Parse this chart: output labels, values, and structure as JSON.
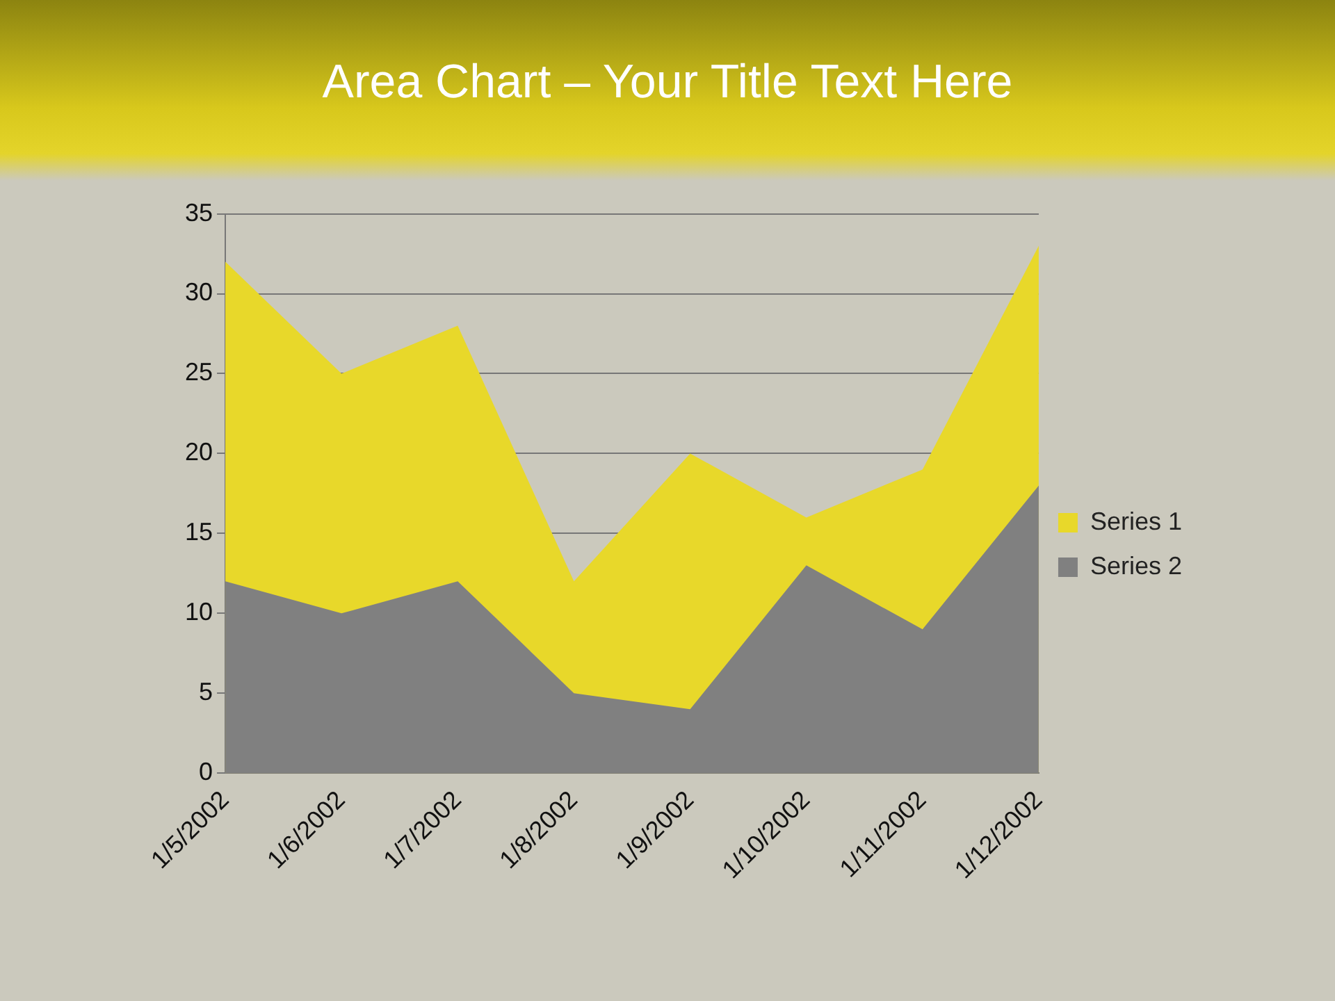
{
  "chart_data": {
    "type": "area",
    "title": "Area Chart – Your Title Text Here",
    "categories": [
      "1/5/2002",
      "1/6/2002",
      "1/7/2002",
      "1/8/2002",
      "1/9/2002",
      "1/10/2002",
      "1/11/2002",
      "1/12/2002"
    ],
    "series": [
      {
        "name": "Series 1",
        "color": "#e8d82a",
        "values": [
          32,
          25,
          28,
          12,
          20,
          16,
          19,
          33
        ]
      },
      {
        "name": "Series 2",
        "color": "#808080",
        "values": [
          12,
          10,
          12,
          5,
          4,
          13,
          9,
          18
        ]
      }
    ],
    "ylim": [
      0,
      35
    ],
    "yticks": [
      0,
      5,
      10,
      15,
      20,
      25,
      30,
      35
    ],
    "grid": "y",
    "legend": "right",
    "marker": "none"
  }
}
